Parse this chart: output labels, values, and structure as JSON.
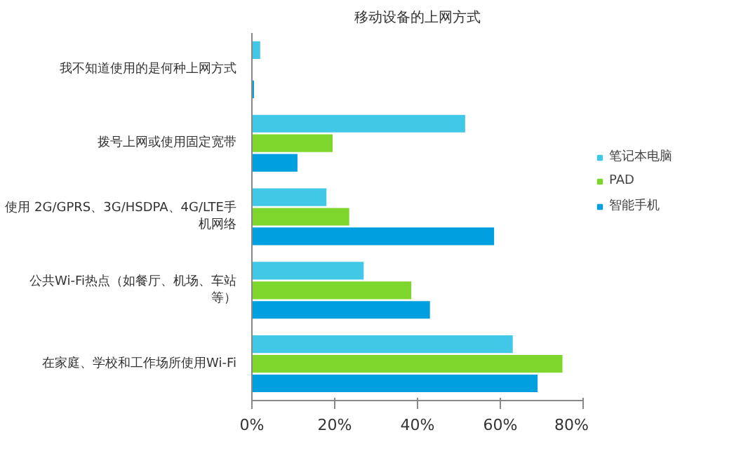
{
  "chart_data": {
    "type": "bar",
    "orientation": "horizontal",
    "title": "移动设备的上网方式",
    "categories": [
      "我不知道使用的是何种上网方式",
      "拨号上网或使用固定宽带",
      "使用 2G/GPRS、3G/HSDPA、4G/LTE手机网络",
      "公共Wi-Fi热点（如餐厅、机场、车站等）",
      "在家庭、学校和工作场所使用Wi-Fi"
    ],
    "series": [
      {
        "name": "笔记本电脑",
        "color": "#41c8e6",
        "values": [
          2,
          51.5,
          18,
          27,
          63
        ]
      },
      {
        "name": "PAD",
        "color": "#7ed62d",
        "values": [
          0,
          19.5,
          23.5,
          38.5,
          75
        ]
      },
      {
        "name": "智能手机",
        "color": "#009fdf",
        "values": [
          0.5,
          11,
          58.5,
          43,
          69
        ]
      }
    ],
    "xlim": [
      0,
      80
    ],
    "xticks": [
      {
        "value": 0,
        "label": "0%"
      },
      {
        "value": 20,
        "label": "20%"
      },
      {
        "value": 40,
        "label": "40%"
      },
      {
        "value": 60,
        "label": "60%"
      },
      {
        "value": 80,
        "label": "80%"
      }
    ],
    "grid": false,
    "legend": "right"
  }
}
